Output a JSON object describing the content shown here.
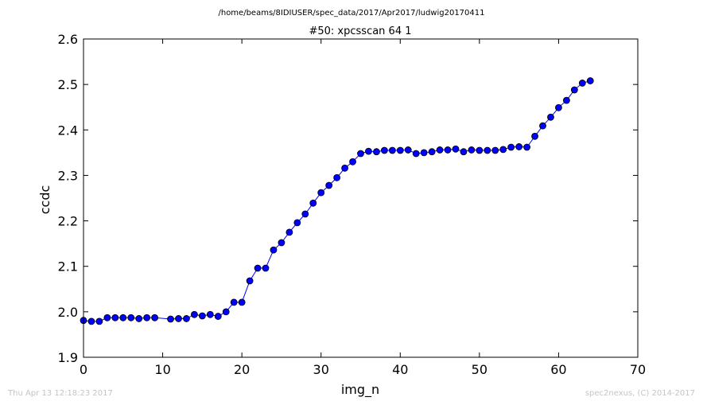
{
  "suptitle": "/home/beams/8IDIUSER/spec_data/2017/Apr2017/ludwig20170411",
  "footer": {
    "timestamp": "Thu Apr 13 12:18:23 2017",
    "credit": "spec2nexus, (C) 2014-2017"
  },
  "colors": {
    "series": "#0000ff",
    "axes": "#000000",
    "footer": "#c4c4c4"
  },
  "chart_data": {
    "type": "line",
    "title": "#50: xpcsscan 64 1",
    "xlabel": "img_n",
    "ylabel": "ccdc",
    "xlim": [
      0,
      70
    ],
    "ylim": [
      1.9,
      2.6
    ],
    "xticks": [
      0,
      10,
      20,
      30,
      40,
      50,
      60,
      70
    ],
    "yticks": [
      1.9,
      2.0,
      2.1,
      2.2,
      2.3,
      2.4,
      2.5,
      2.6
    ],
    "xtick_labels": [
      "0",
      "10",
      "20",
      "30",
      "40",
      "50",
      "60",
      "70"
    ],
    "ytick_labels": [
      "1.9",
      "2.0",
      "2.1",
      "2.2",
      "2.3",
      "2.4",
      "2.5",
      "2.6"
    ],
    "grid": false,
    "marker": "circle",
    "series": [
      {
        "x": [
          0,
          1,
          2,
          3,
          4,
          5,
          6,
          7,
          8,
          9,
          11,
          12,
          13,
          14,
          15,
          16,
          17,
          18,
          19,
          20,
          21,
          22,
          23,
          24,
          25,
          26,
          27,
          28,
          29,
          30,
          31,
          32,
          33,
          34,
          35,
          36,
          37,
          38,
          39,
          40,
          41,
          42,
          43,
          44,
          45,
          46,
          47,
          48,
          49,
          50,
          51,
          52,
          53,
          54,
          55,
          56,
          57,
          58,
          59,
          60,
          61,
          62,
          63,
          64
        ],
        "values": [
          1.981,
          1.979,
          1.979,
          1.987,
          1.987,
          1.987,
          1.987,
          1.985,
          1.987,
          1.987,
          1.984,
          1.985,
          1.985,
          1.994,
          1.991,
          1.994,
          1.99,
          2.0,
          2.021,
          2.021,
          2.068,
          2.096,
          2.096,
          2.136,
          2.152,
          2.175,
          2.196,
          2.215,
          2.239,
          2.262,
          2.278,
          2.295,
          2.316,
          2.33,
          2.348,
          2.353,
          2.352,
          2.355,
          2.355,
          2.355,
          2.356,
          2.348,
          2.35,
          2.352,
          2.356,
          2.356,
          2.358,
          2.352,
          2.356,
          2.355,
          2.355,
          2.355,
          2.357,
          2.362,
          2.363,
          2.362,
          2.386,
          2.409,
          2.428,
          2.449,
          2.465,
          2.488,
          2.503,
          2.508
        ]
      }
    ]
  }
}
